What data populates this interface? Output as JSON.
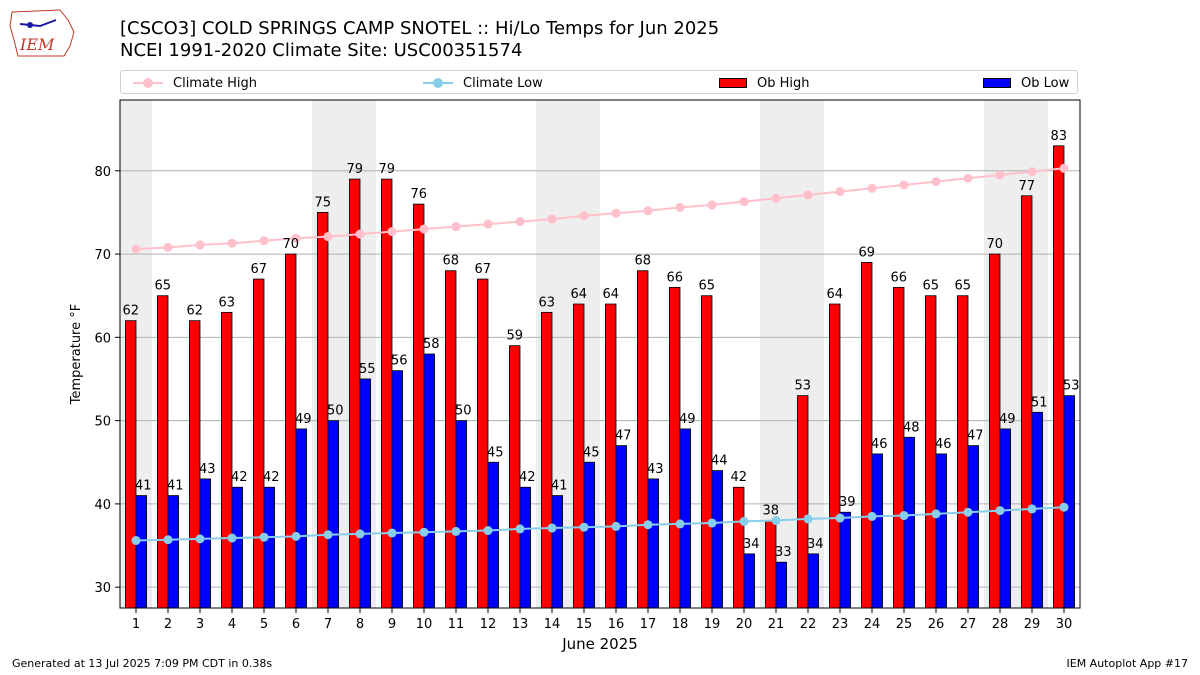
{
  "logo_text": "IEM",
  "title_line1": "[CSCO3] COLD SPRINGS CAMP SNOTEL :: Hi/Lo Temps for Jun 2025",
  "title_line2": "NCEI 1991-2020 Climate Site: USC00351574",
  "legend": {
    "climate_high": "Climate High",
    "climate_low": "Climate Low",
    "ob_high": "Ob High",
    "ob_low": "Ob Low"
  },
  "footer_left": "Generated at 13 Jul 2025 7:09 PM CDT in 0.38s",
  "footer_right": "IEM Autoplot App #17",
  "colors": {
    "ob_high": "#ff0000",
    "ob_low": "#0000ff",
    "climate_high": "#ffc0cb",
    "climate_low": "#87ceeb",
    "weekend_band": "#eeeeee",
    "grid": "#b0b0b0"
  },
  "chart_data": {
    "type": "bar",
    "xlabel": "June 2025",
    "ylabel": "Temperature °F",
    "ylim": [
      27.5,
      88.5
    ],
    "yticks": [
      30,
      40,
      50,
      60,
      70,
      80
    ],
    "grid": "horizontal",
    "legend_position": "top",
    "categories": [
      1,
      2,
      3,
      4,
      5,
      6,
      7,
      8,
      9,
      10,
      11,
      12,
      13,
      14,
      15,
      16,
      17,
      18,
      19,
      20,
      21,
      22,
      23,
      24,
      25,
      26,
      27,
      28,
      29,
      30
    ],
    "shaded_days": [
      1,
      7,
      8,
      14,
      15,
      21,
      22,
      28,
      29
    ],
    "series": [
      {
        "name": "Ob High",
        "kind": "bar",
        "values": [
          62,
          65,
          62,
          63,
          67,
          70,
          75,
          79,
          79,
          76,
          68,
          67,
          59,
          63,
          64,
          64,
          68,
          66,
          65,
          42,
          38,
          53,
          64,
          69,
          66,
          65,
          65,
          70,
          77,
          83
        ],
        "labels": [
          62,
          65,
          62,
          63,
          67,
          70,
          75,
          79,
          79,
          76,
          68,
          67,
          59,
          63,
          64,
          64,
          68,
          66,
          65,
          42,
          38,
          53,
          64,
          69,
          66,
          65,
          65,
          70,
          77,
          83
        ]
      },
      {
        "name": "Ob Low",
        "kind": "bar",
        "values": [
          41,
          41,
          43,
          42,
          42,
          49,
          50,
          55,
          56,
          58,
          50,
          45,
          42,
          41,
          45,
          47,
          43,
          49,
          44,
          34,
          33,
          34,
          39,
          46,
          48,
          46,
          47,
          49,
          51,
          53
        ],
        "labels": [
          41,
          41,
          43,
          42,
          42,
          49,
          50,
          55,
          56,
          58,
          50,
          45,
          42,
          41,
          45,
          47,
          43,
          49,
          44,
          34,
          33,
          34,
          39,
          46,
          48,
          46,
          47,
          49,
          51,
          53
        ]
      },
      {
        "name": "Climate High",
        "kind": "line",
        "values": [
          70.6,
          70.8,
          71.1,
          71.3,
          71.6,
          71.9,
          72.1,
          72.4,
          72.7,
          73.0,
          73.3,
          73.6,
          73.9,
          74.2,
          74.6,
          74.9,
          75.2,
          75.6,
          75.9,
          76.3,
          76.7,
          77.1,
          77.5,
          77.9,
          78.3,
          78.7,
          79.1,
          79.5,
          79.9,
          80.3
        ]
      },
      {
        "name": "Climate Low",
        "kind": "line",
        "values": [
          35.6,
          35.7,
          35.8,
          35.9,
          36.0,
          36.1,
          36.3,
          36.4,
          36.5,
          36.6,
          36.7,
          36.8,
          37.0,
          37.1,
          37.2,
          37.3,
          37.5,
          37.6,
          37.7,
          37.9,
          38.0,
          38.2,
          38.3,
          38.5,
          38.6,
          38.8,
          39.0,
          39.2,
          39.4,
          39.6
        ]
      }
    ]
  }
}
